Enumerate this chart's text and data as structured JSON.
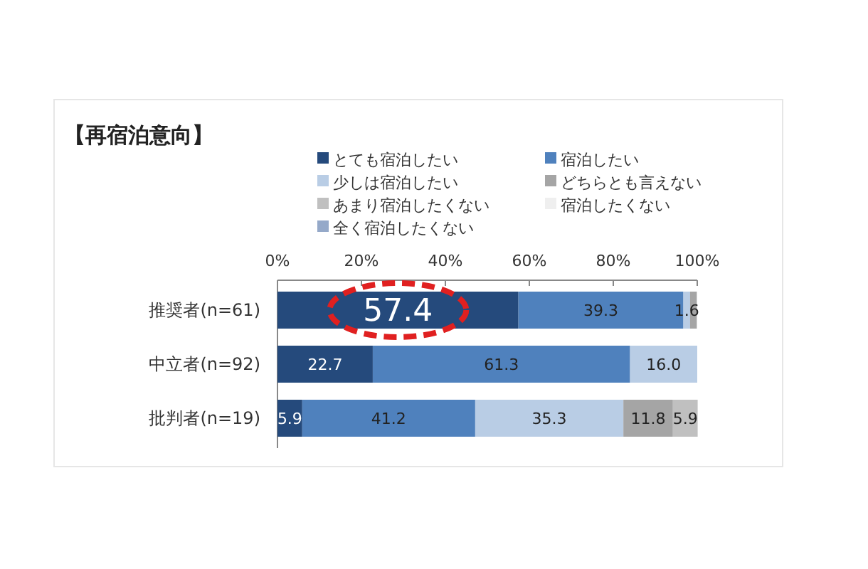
{
  "chart_data": {
    "type": "bar",
    "orientation": "horizontal",
    "stacked": true,
    "title": "【再宿泊意向】",
    "categories": [
      "推奨者(n=61)",
      "中立者(n=92)",
      "批判者(n=19)"
    ],
    "series": [
      {
        "name": "とても宿泊したい",
        "color": "#254a7c",
        "values": [
          57.4,
          22.7,
          5.9
        ],
        "value_labels": [
          "57.4",
          "22.7",
          "5.9"
        ]
      },
      {
        "name": "宿泊したい",
        "color": "#4f81bd",
        "values": [
          39.3,
          61.3,
          41.2
        ],
        "value_labels": [
          "39.3",
          "61.3",
          "41.2"
        ]
      },
      {
        "name": "少しは宿泊したい",
        "color": "#b9cde5",
        "values": [
          1.6,
          16.0,
          35.3
        ],
        "value_labels": [
          "1.6",
          "16.0",
          "35.3"
        ]
      },
      {
        "name": "どちらとも言えない",
        "color": "#a5a5a5",
        "values": [
          1.6,
          null,
          11.8
        ],
        "value_labels": [
          null,
          null,
          "11.8"
        ]
      },
      {
        "name": "あまり宿泊したくない",
        "color": "#c0c0c0",
        "values": [
          null,
          null,
          5.9
        ],
        "value_labels": [
          null,
          null,
          "5.9"
        ]
      },
      {
        "name": "宿泊したくない",
        "color": "#efefef",
        "values": [
          null,
          null,
          null
        ]
      },
      {
        "name": "全く宿泊したくない",
        "color": "#95a9c9",
        "values": [
          null,
          null,
          null
        ]
      }
    ],
    "xlim": [
      0,
      100
    ],
    "xticks": [
      {
        "value": 0,
        "label": "0%"
      },
      {
        "value": 20,
        "label": "20%"
      },
      {
        "value": 40,
        "label": "40%"
      },
      {
        "value": 60,
        "label": "60%"
      },
      {
        "value": 80,
        "label": "80%"
      },
      {
        "value": 100,
        "label": "100%"
      }
    ],
    "legend": "top",
    "grid": false
  }
}
